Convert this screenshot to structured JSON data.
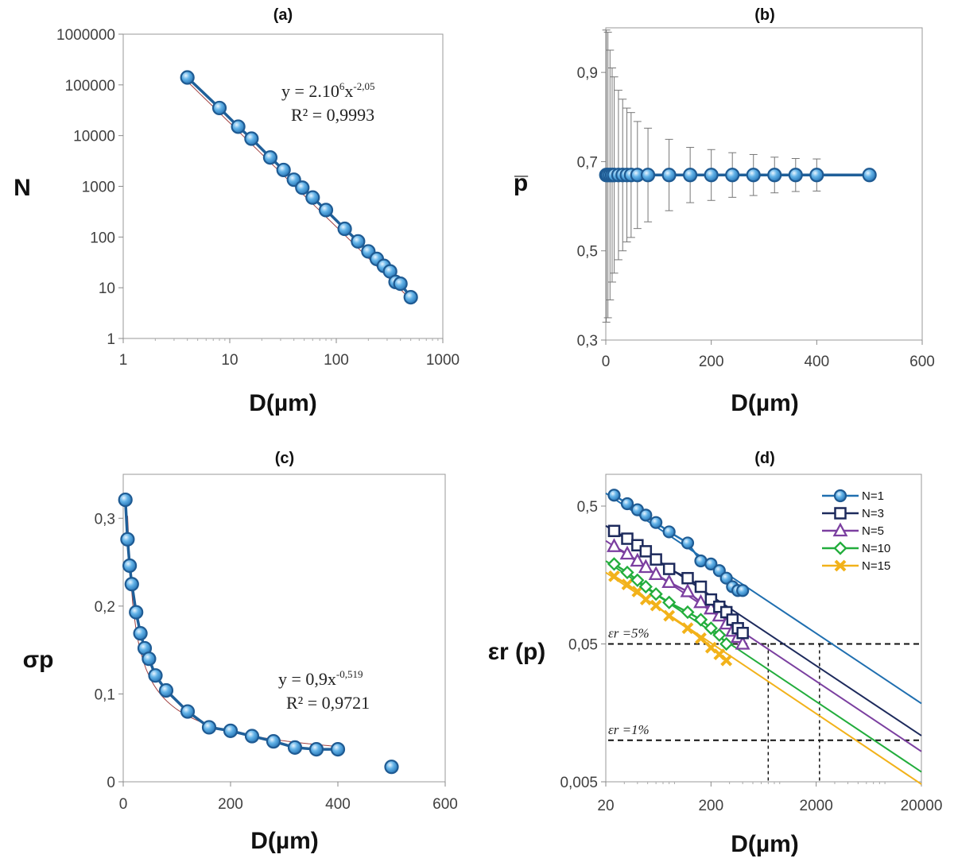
{
  "colors": {
    "marker_fill": "#63b3e8",
    "marker_stroke": "#1f5b93",
    "line_blue": "#1f5f99",
    "error_bar": "#777777",
    "frame": "#999999",
    "navy": "#1d2a5c",
    "purple": "#7b3fa0",
    "green": "#22ad3c",
    "orange": "#f2b21a"
  },
  "chart_data": [
    {
      "id": "a",
      "type": "scatter",
      "scale": "log-log",
      "title": "(a)",
      "xlabel": "D(µm)",
      "ylabel": "N",
      "xlim": [
        1,
        1000
      ],
      "ylim": [
        1,
        1000000
      ],
      "xticks": [
        "1",
        "10",
        "100",
        "1000"
      ],
      "yticks": [
        "1",
        "10",
        "100",
        "1000",
        "10000",
        "100000",
        "1000000"
      ],
      "x": [
        4,
        8,
        12,
        16,
        24,
        32,
        40,
        48,
        60,
        80,
        120,
        160,
        200,
        240,
        280,
        320,
        360,
        400,
        500
      ],
      "y": [
        140000,
        35000,
        15000,
        8700,
        3700,
        2100,
        1350,
        940,
        600,
        340,
        145,
        82,
        52,
        37,
        27,
        21,
        13,
        12,
        6.5
      ],
      "fit": {
        "a": 2000000,
        "b": -2.05
      },
      "equation": {
        "prefix": "y = 2.10",
        "exp1": "6",
        "mid": "x",
        "exp2": "-2,05",
        "r2": "R² = 0,9993"
      }
    },
    {
      "id": "b",
      "type": "scatter",
      "title": "(b)",
      "xlabel": "D(µm)",
      "ylabel": "p̅",
      "xlim": [
        0,
        600
      ],
      "ylim": [
        0.3,
        1.0
      ],
      "xticks": [
        "0",
        "200",
        "400",
        "600"
      ],
      "yticks": [
        "0,3",
        "0,5",
        "0,7",
        "0,9"
      ],
      "x": [
        1,
        4,
        8,
        12,
        16,
        24,
        32,
        40,
        48,
        60,
        80,
        120,
        160,
        200,
        240,
        280,
        320,
        360,
        400,
        500
      ],
      "y": [
        0.67,
        0.67,
        0.67,
        0.67,
        0.67,
        0.67,
        0.67,
        0.67,
        0.67,
        0.67,
        0.67,
        0.67,
        0.67,
        0.67,
        0.67,
        0.67,
        0.67,
        0.67,
        0.67,
        0.67
      ],
      "error": [
        0.33,
        0.32,
        0.28,
        0.24,
        0.22,
        0.19,
        0.17,
        0.15,
        0.14,
        0.12,
        0.105,
        0.08,
        0.062,
        0.057,
        0.05,
        0.046,
        0.04,
        0.037,
        0.036,
        0
      ]
    },
    {
      "id": "c",
      "type": "scatter",
      "title": "(c)",
      "xlabel": "D(µm)",
      "ylabel": "σp",
      "xlim": [
        0,
        600
      ],
      "ylim": [
        0,
        0.35
      ],
      "xticks": [
        "0",
        "200",
        "400",
        "600"
      ],
      "yticks": [
        "0",
        "0,1",
        "0,2",
        "0,3"
      ],
      "x": [
        4,
        8,
        12,
        16,
        24,
        32,
        40,
        48,
        60,
        80,
        120,
        160,
        200,
        240,
        280,
        320,
        360,
        400,
        500
      ],
      "y": [
        0.321,
        0.276,
        0.246,
        0.225,
        0.193,
        0.169,
        0.152,
        0.14,
        0.121,
        0.104,
        0.08,
        0.062,
        0.058,
        0.052,
        0.046,
        0.039,
        0.037,
        0.037,
        0.017
      ],
      "fit": {
        "a": 0.9,
        "b": -0.519
      },
      "equation": {
        "prefix": "y = 0,9x",
        "exp": "-0,519",
        "r2": "R² = 0,9721"
      }
    },
    {
      "id": "d",
      "type": "line",
      "scale": "log-log",
      "title": "(d)",
      "xlabel": "D(µm)",
      "ylabel": "εr (p)",
      "xlim": [
        20,
        20000
      ],
      "ylim": [
        0.005,
        0.85
      ],
      "xticks": [
        "20",
        "200",
        "2000",
        "20000"
      ],
      "yticks": [
        "0,005",
        "0,05",
        "0,5"
      ],
      "series": [
        {
          "name": "N=1",
          "color": "#1f6fb0",
          "marker": "circle",
          "x": [
            24,
            32,
            40,
            48,
            60,
            80,
            120,
            160,
            200,
            240,
            280,
            320,
            360,
            400
          ],
          "y": [
            0.6,
            0.52,
            0.47,
            0.43,
            0.38,
            0.325,
            0.27,
            0.2,
            0.19,
            0.17,
            0.15,
            0.13,
            0.122,
            0.122
          ],
          "fit": [
            [
              20,
              0.62
            ],
            [
              20000,
              0.0185
            ]
          ]
        },
        {
          "name": "N=3",
          "color": "#1d2a5c",
          "marker": "square",
          "x": [
            24,
            32,
            40,
            48,
            60,
            80,
            120,
            160,
            200,
            240,
            280,
            320,
            360,
            400
          ],
          "y": [
            0.33,
            0.29,
            0.26,
            0.235,
            0.205,
            0.175,
            0.15,
            0.13,
            0.105,
            0.093,
            0.085,
            0.075,
            0.065,
            0.06
          ],
          "fit": [
            [
              20,
              0.36
            ],
            [
              20000,
              0.0108
            ]
          ]
        },
        {
          "name": "N=5",
          "color": "#7b3fa0",
          "marker": "triangle",
          "x": [
            24,
            32,
            40,
            48,
            60,
            80,
            120,
            160,
            200,
            240,
            280,
            320,
            360,
            400
          ],
          "y": [
            0.255,
            0.225,
            0.2,
            0.18,
            0.16,
            0.14,
            0.12,
            0.1,
            0.09,
            0.08,
            0.07,
            0.062,
            0.056,
            0.05
          ],
          "fit": [
            [
              20,
              0.28
            ],
            [
              20000,
              0.0083
            ]
          ]
        },
        {
          "name": "N=10",
          "color": "#22ad3c",
          "marker": "diamond",
          "x": [
            24,
            32,
            40,
            48,
            60,
            80,
            120,
            160,
            200,
            240,
            280
          ],
          "y": [
            0.19,
            0.165,
            0.145,
            0.13,
            0.115,
            0.1,
            0.085,
            0.075,
            0.065,
            0.058,
            0.05
          ],
          "fit": [
            [
              20,
              0.2
            ],
            [
              20000,
              0.0059
            ]
          ]
        },
        {
          "name": "N=15",
          "color": "#f2b21a",
          "marker": "cross",
          "x": [
            24,
            32,
            40,
            48,
            60,
            80,
            120,
            160,
            200,
            240,
            280
          ],
          "y": [
            0.155,
            0.135,
            0.12,
            0.105,
            0.095,
            0.08,
            0.065,
            0.055,
            0.047,
            0.042,
            0.038
          ],
          "fit": [
            [
              20,
              0.165
            ],
            [
              20000,
              0.0048
            ]
          ]
        }
      ],
      "thresholds": [
        {
          "label": "εr =5%",
          "y": 0.05
        },
        {
          "label": "εr =1%",
          "y": 0.01
        }
      ],
      "drops": [
        {
          "x": 700,
          "y": 0.05
        },
        {
          "x": 2150,
          "y": 0.05
        }
      ]
    }
  ]
}
